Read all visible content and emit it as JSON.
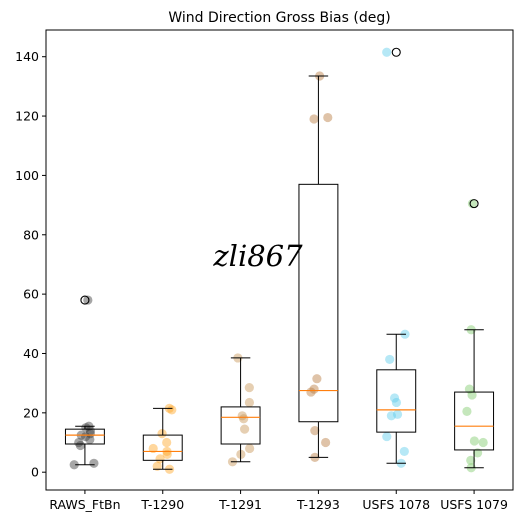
{
  "chart_data": {
    "type": "box",
    "title": "Wind Direction Gross Bias (deg)",
    "xlabel": "",
    "ylabel": "",
    "ylim": [
      -6,
      149
    ],
    "yticks": [
      0,
      20,
      40,
      60,
      80,
      100,
      120,
      140
    ],
    "grid": false,
    "categories": [
      "RAWS_FtBn",
      "T-1290",
      "T-1291",
      "T-1293",
      "USFS 1078",
      "USFS 1079"
    ],
    "series": [
      {
        "color": "#3a3a3a",
        "box": {
          "whisker_low": 2.5,
          "q1": 9.5,
          "median": 12.5,
          "q3": 14.5,
          "whisker_high": 15.5
        },
        "outliers": [
          58
        ],
        "points": [
          2.5,
          3,
          9,
          10,
          11,
          12,
          12.5,
          13,
          14,
          15,
          15.5,
          58
        ]
      },
      {
        "color": "#ffa726",
        "box": {
          "whisker_low": 1,
          "q1": 4,
          "median": 7,
          "q3": 12.5,
          "whisker_high": 21.5
        },
        "outliers": [],
        "points": [
          1,
          2,
          4.5,
          6,
          7,
          8,
          10,
          13,
          21,
          21.5
        ]
      },
      {
        "color": "#c79454",
        "box": {
          "whisker_low": 3.5,
          "q1": 9.5,
          "median": 18.5,
          "q3": 22,
          "whisker_high": 38.5
        },
        "outliers": [],
        "points": [
          3.5,
          6,
          8,
          14.5,
          18,
          19,
          23.5,
          28.5,
          38.5
        ]
      },
      {
        "color": "#b8793d",
        "box": {
          "whisker_low": 5,
          "q1": 17,
          "median": 27.5,
          "q3": 97,
          "whisker_high": 133.5
        },
        "outliers": [],
        "points": [
          5,
          10,
          14,
          27,
          28,
          31.5,
          119,
          119.5,
          133.5
        ]
      },
      {
        "color": "#5ecbea",
        "box": {
          "whisker_low": 3,
          "q1": 13.5,
          "median": 21,
          "q3": 34.5,
          "whisker_high": 46.5
        },
        "outliers": [
          141.5
        ],
        "points": [
          3,
          7,
          12,
          19,
          19.5,
          23.5,
          25,
          38,
          46.5,
          141.5
        ]
      },
      {
        "color": "#7fc96a",
        "box": {
          "whisker_low": 1.5,
          "q1": 7.5,
          "median": 15.5,
          "q3": 27,
          "whisker_high": 48
        },
        "outliers": [
          90.5
        ],
        "points": [
          1.5,
          4,
          6.5,
          10,
          10.5,
          20.5,
          26,
          28,
          48,
          90.5
        ]
      }
    ],
    "annotations": [
      {
        "text": "zli867",
        "x_category": "T-1291",
        "y": 73
      }
    ]
  }
}
